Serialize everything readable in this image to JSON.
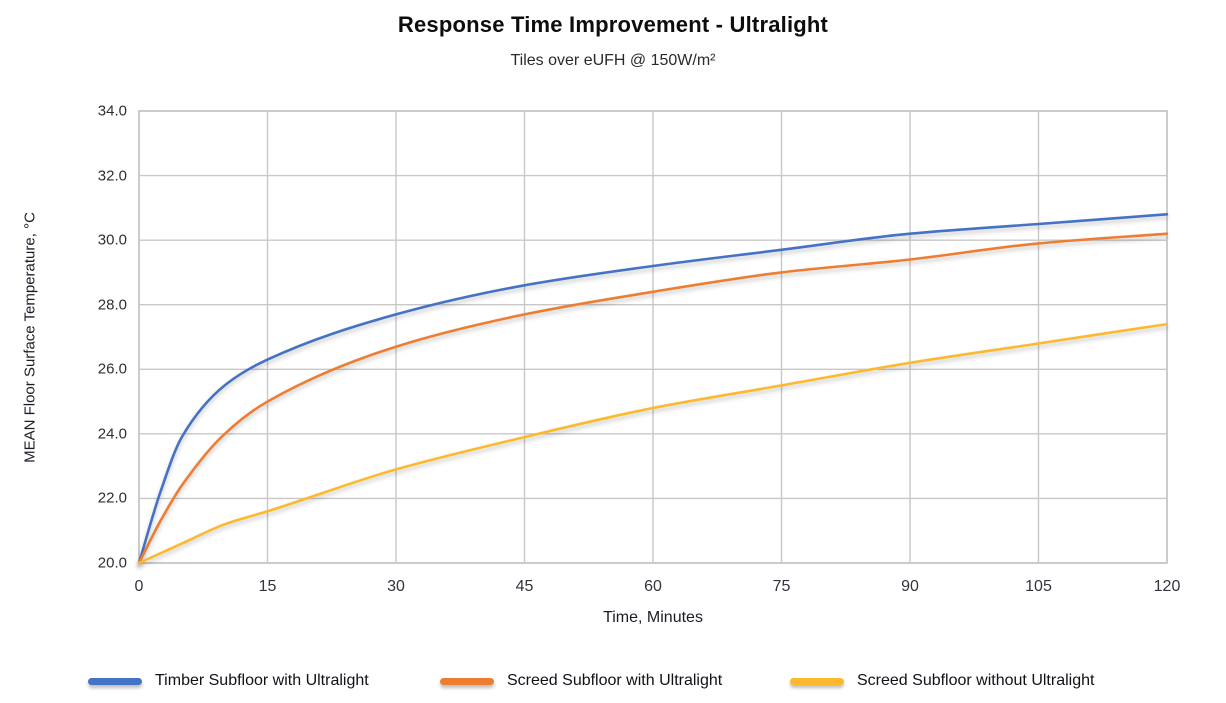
{
  "title": "Response Time Improvement - Ultralight",
  "subtitle": "Tiles over eUFH @ 150W/m²",
  "chart_data": {
    "type": "line",
    "title": "Response Time Improvement - Ultralight",
    "subtitle": "Tiles over eUFH @ 150W/m²",
    "xlabel": "Time, Minutes",
    "ylabel": "MEAN Floor Surface Temperature, °C",
    "xlim": [
      0,
      120
    ],
    "ylim": [
      20.0,
      34.0
    ],
    "x_ticks": [
      0,
      15,
      30,
      45,
      60,
      75,
      90,
      105,
      120
    ],
    "y_ticks": [
      20.0,
      22.0,
      24.0,
      26.0,
      28.0,
      30.0,
      32.0,
      34.0
    ],
    "grid": true,
    "legend_position": "bottom",
    "x": [
      0,
      2.5,
      5,
      10,
      15,
      30,
      45,
      60,
      75,
      90,
      105,
      120
    ],
    "series": [
      {
        "name": "Timber Subfloor with Ultralight",
        "color": "#4472C4",
        "values": [
          20.0,
          22.2,
          23.9,
          25.5,
          26.3,
          27.7,
          28.6,
          29.2,
          29.7,
          30.2,
          30.5,
          30.8
        ]
      },
      {
        "name": "Screed Subfloor with Ultralight",
        "color": "#ED7D31",
        "values": [
          20.0,
          21.3,
          22.4,
          24.0,
          25.0,
          26.7,
          27.7,
          28.4,
          29.0,
          29.4,
          29.9,
          30.2
        ]
      },
      {
        "name": "Screed Subfloor without Ultralight",
        "color": "#FDB92D",
        "values": [
          20.0,
          20.3,
          20.6,
          21.2,
          21.6,
          22.9,
          23.9,
          24.8,
          25.5,
          26.2,
          26.8,
          27.4
        ]
      }
    ]
  },
  "layout_colors": {
    "grid": "#c8c8c8",
    "tick_text": "#2e2e38",
    "title_text": "#0d0d0d"
  }
}
